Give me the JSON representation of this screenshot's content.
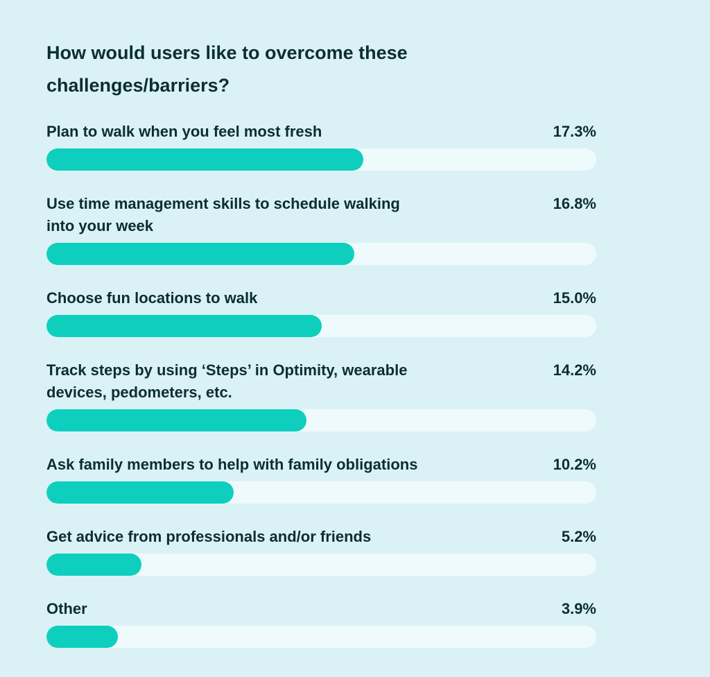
{
  "chart_data": {
    "type": "bar",
    "title": "How would users like to overcome these challenges/barriers?",
    "orientation": "horizontal",
    "categories": [
      "Plan to walk when you feel most fresh",
      "Use time management skills to schedule walking into your week",
      "Choose fun locations to walk",
      "Track steps by using ‘Steps’ in Optimity, wearable devices, pedometers, etc.",
      "Ask family members to help with family obligations",
      "Get advice from professionals and/or friends",
      "Other"
    ],
    "values": [
      17.3,
      16.8,
      15.0,
      14.2,
      10.2,
      5.2,
      3.9
    ],
    "value_labels": [
      "17.3%",
      "16.8%",
      "15.0%",
      "14.2%",
      "10.2%",
      "5.2%",
      "3.9%"
    ],
    "xlim": [
      0,
      30
    ],
    "grid": false,
    "colors": {
      "background": "#daf2f6",
      "track": "#effafc",
      "bar": "#0ecfbe",
      "text": "#0b2d33"
    }
  }
}
